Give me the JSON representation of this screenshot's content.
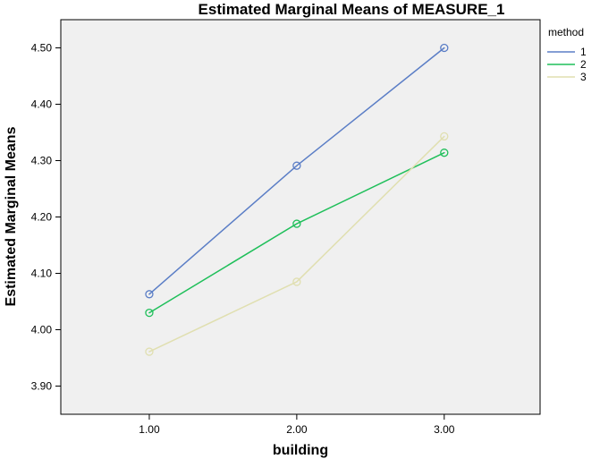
{
  "chart_data": {
    "type": "line",
    "title": "Estimated Marginal Means of MEASURE_1",
    "xlabel": "building",
    "ylabel": "Estimated Marginal Means",
    "x": [
      "1.00",
      "2.00",
      "3.00"
    ],
    "xlim": [
      0.4,
      3.65
    ],
    "ylim": [
      3.85,
      4.55
    ],
    "yticks": [
      "3.90",
      "4.00",
      "4.10",
      "4.20",
      "4.30",
      "4.40",
      "4.50"
    ],
    "yticks_values": [
      3.9,
      4.0,
      4.1,
      4.2,
      4.3,
      4.4,
      4.5
    ],
    "grid": false,
    "legend": {
      "title": "method",
      "placement": "right"
    },
    "series": [
      {
        "name": "1",
        "values": [
          4.063,
          4.291,
          4.5
        ],
        "color": "#5b7ec6"
      },
      {
        "name": "2",
        "values": [
          4.03,
          4.188,
          4.314
        ],
        "color": "#1fbf5a"
      },
      {
        "name": "3",
        "values": [
          3.961,
          4.085,
          4.343
        ],
        "color": "#e0dfb0"
      }
    ]
  }
}
